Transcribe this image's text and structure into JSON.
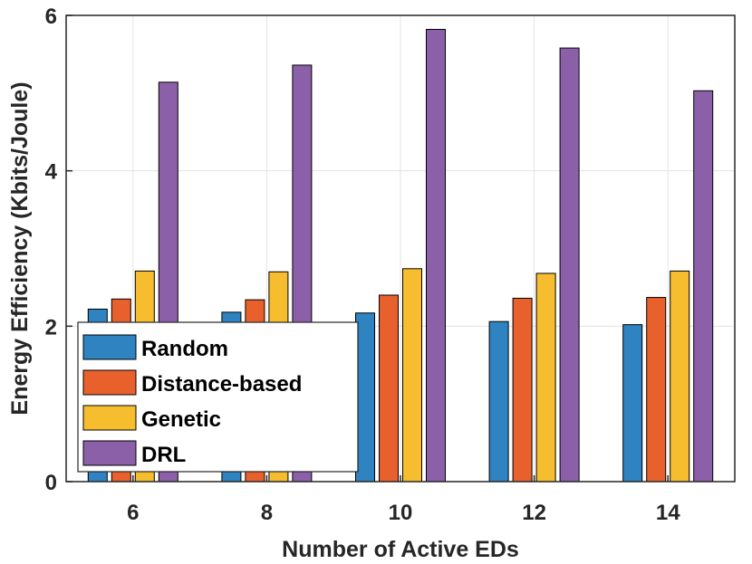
{
  "chart_data": {
    "type": "bar",
    "title": "",
    "xlabel": "Number of Active EDs",
    "ylabel": "Energy Efficiency (Kbits/Joule)",
    "categories": [
      "6",
      "8",
      "10",
      "12",
      "14"
    ],
    "ylim": [
      0,
      6
    ],
    "yticks": [
      "0",
      "2",
      "4",
      "6"
    ],
    "grid": true,
    "legend_position": "bottom-left",
    "series": [
      {
        "name": "Random",
        "color": "#2E83C0",
        "values": [
          2.22,
          2.18,
          2.17,
          2.06,
          2.02
        ]
      },
      {
        "name": "Distance-based",
        "color": "#E8612C",
        "values": [
          2.35,
          2.34,
          2.4,
          2.36,
          2.37
        ]
      },
      {
        "name": "Genetic",
        "color": "#F6BE2F",
        "values": [
          2.71,
          2.7,
          2.74,
          2.68,
          2.71
        ]
      },
      {
        "name": "DRL",
        "color": "#8B60A8",
        "values": [
          5.14,
          5.36,
          5.82,
          5.58,
          5.03
        ]
      }
    ]
  }
}
